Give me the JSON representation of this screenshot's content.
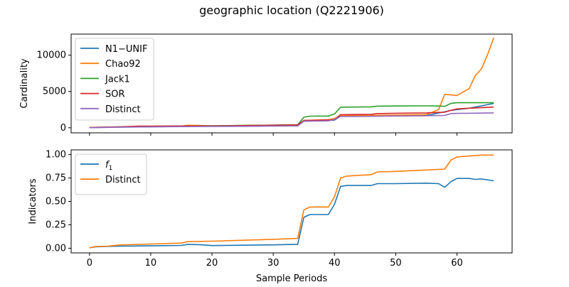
{
  "figure": {
    "title": "geographic location (Q2221906)",
    "xlabel": "Sample Periods"
  },
  "colors": {
    "blue": "#1f77b4",
    "orange": "#ff7f0e",
    "green": "#2ca02c",
    "red": "#d62728",
    "purple": "#9467bd"
  },
  "chart_data": [
    {
      "type": "line",
      "title": "",
      "xlabel": "",
      "ylabel": "Cardinality",
      "xlim": [
        -3,
        69
      ],
      "ylim": [
        -700,
        12900
      ],
      "yticks": [
        0,
        5000,
        10000
      ],
      "ytick_labels": [
        "0",
        "5000",
        "10000"
      ],
      "xticks": [
        0,
        10,
        20,
        30,
        40,
        50,
        60
      ],
      "xtick_labels": [],
      "grid": false,
      "legend": "top-left",
      "series": [
        {
          "name": "N1−UNIF",
          "color": "#1f77b4",
          "x": [
            0,
            5,
            10,
            15,
            20,
            25,
            30,
            34,
            35,
            40,
            41,
            45,
            50,
            55,
            58,
            59,
            62,
            66
          ],
          "y": [
            20,
            90,
            140,
            190,
            210,
            240,
            270,
            290,
            900,
            1050,
            1600,
            1620,
            1650,
            1680,
            2200,
            2400,
            2700,
            3350
          ]
        },
        {
          "name": "Chao92",
          "color": "#ff7f0e",
          "x": [
            0,
            5,
            10,
            15,
            16,
            18,
            20,
            25,
            30,
            34,
            35,
            39,
            40,
            41,
            45,
            50,
            55,
            57,
            58,
            60,
            62,
            63,
            64,
            65,
            66
          ],
          "y": [
            40,
            110,
            170,
            220,
            350,
            330,
            260,
            310,
            360,
            380,
            1000,
            1100,
            1300,
            1650,
            1700,
            1750,
            1800,
            2500,
            4600,
            4450,
            5400,
            7200,
            8100,
            10100,
            12400
          ]
        },
        {
          "name": "Jack1",
          "color": "#2ca02c",
          "x": [
            0,
            5,
            10,
            15,
            20,
            25,
            30,
            34,
            35,
            36,
            39,
            40,
            41,
            46,
            47,
            50,
            55,
            57,
            58,
            59,
            60,
            66
          ],
          "y": [
            30,
            120,
            200,
            250,
            280,
            330,
            370,
            420,
            1450,
            1600,
            1620,
            1900,
            2830,
            2880,
            2980,
            3000,
            3020,
            3000,
            2950,
            3350,
            3450,
            3450
          ]
        },
        {
          "name": "SOR",
          "color": "#d62728",
          "x": [
            0,
            5,
            8,
            10,
            15,
            20,
            25,
            30,
            34,
            35,
            40,
            41,
            46,
            47,
            50,
            55,
            58,
            59,
            60,
            62,
            66
          ],
          "y": [
            30,
            130,
            220,
            230,
            250,
            250,
            300,
            350,
            400,
            1000,
            1100,
            1800,
            1850,
            1950,
            2000,
            2050,
            2150,
            2400,
            2600,
            2700,
            2850
          ]
        },
        {
          "name": "Distinct",
          "color": "#9467bd",
          "x": [
            0,
            5,
            10,
            15,
            20,
            25,
            30,
            34,
            35,
            39,
            40,
            41,
            46,
            50,
            55,
            58,
            59,
            60,
            62,
            66
          ],
          "y": [
            10,
            80,
            120,
            160,
            190,
            200,
            240,
            260,
            900,
            950,
            1150,
            1550,
            1580,
            1620,
            1650,
            1700,
            1950,
            1980,
            2000,
            2050
          ]
        }
      ]
    },
    {
      "type": "line",
      "title": "",
      "xlabel": "Sample Periods",
      "ylabel": "Indicators",
      "xlim": [
        -3,
        69
      ],
      "ylim": [
        -0.05,
        1.05
      ],
      "yticks": [
        0,
        0.25,
        0.5,
        0.75,
        1
      ],
      "ytick_labels": [
        "0.00",
        "0.25",
        "0.50",
        "0.75",
        "1.00"
      ],
      "xticks": [
        0,
        10,
        20,
        30,
        40,
        50,
        60
      ],
      "xtick_labels": [
        "0",
        "10",
        "20",
        "30",
        "40",
        "50",
        "60"
      ],
      "grid": false,
      "legend": "top-left",
      "series": [
        {
          "name": "f",
          "name_sub": "1",
          "color": "#1f77b4",
          "x": [
            0,
            1,
            3,
            5,
            10,
            15,
            16,
            18,
            20,
            25,
            30,
            34,
            35,
            36,
            39,
            40,
            41,
            42,
            45,
            46,
            47,
            50,
            55,
            57,
            58,
            59,
            60,
            62,
            63,
            64,
            66
          ],
          "y": [
            0.005,
            0.015,
            0.02,
            0.022,
            0.025,
            0.03,
            0.04,
            0.038,
            0.028,
            0.032,
            0.036,
            0.042,
            0.33,
            0.36,
            0.36,
            0.47,
            0.66,
            0.67,
            0.67,
            0.67,
            0.69,
            0.69,
            0.695,
            0.69,
            0.65,
            0.71,
            0.745,
            0.745,
            0.735,
            0.74,
            0.72
          ]
        },
        {
          "name": "Distinct",
          "name_sub": "",
          "color": "#ff7f0e",
          "x": [
            0,
            1,
            3,
            5,
            10,
            15,
            16,
            20,
            25,
            30,
            34,
            35,
            36,
            39,
            40,
            41,
            42,
            43,
            46,
            47,
            50,
            55,
            58,
            59,
            60,
            62,
            63,
            64,
            66
          ],
          "y": [
            0.005,
            0.018,
            0.022,
            0.035,
            0.045,
            0.055,
            0.07,
            0.075,
            0.085,
            0.095,
            0.105,
            0.41,
            0.44,
            0.44,
            0.55,
            0.75,
            0.77,
            0.775,
            0.785,
            0.815,
            0.82,
            0.835,
            0.845,
            0.94,
            0.975,
            0.985,
            0.99,
            0.995,
            0.995
          ]
        }
      ]
    }
  ]
}
